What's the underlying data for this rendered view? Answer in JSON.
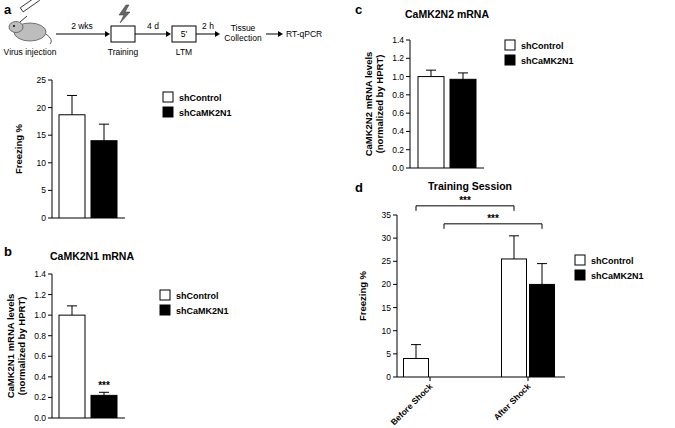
{
  "schematic": {
    "injection": "Virus injection",
    "training": "Training",
    "test_box": "5'",
    "test": "LTM",
    "collection": "Tissue Collection",
    "assay": "RT-qPCR",
    "intervals": [
      "2 wks",
      "4 d",
      "2 h"
    ]
  },
  "chart_data": [
    {
      "panel": "a",
      "type": "bar",
      "ylabel": "Freezing %",
      "categories": [
        null
      ],
      "series": [
        {
          "name": "shControl",
          "color": "#ffffff",
          "values": [
            18.7
          ],
          "errors": [
            3.5
          ]
        },
        {
          "name": "shCaMK2N1",
          "color": "#000000",
          "values": [
            14
          ],
          "errors": [
            3
          ]
        }
      ],
      "ylim": [
        0,
        25
      ],
      "yticks": [
        0,
        5,
        10,
        15,
        20,
        25
      ],
      "tick_labels": "y",
      "legend": "right"
    },
    {
      "panel": "b",
      "type": "bar",
      "title": "CaMK2N1 mRNA",
      "ylabel": "CaMK2N1 mRNA levels\n(normalized by HPRT)",
      "categories": [
        null
      ],
      "series": [
        {
          "name": "shControl",
          "color": "#ffffff",
          "values": [
            1.0
          ],
          "errors": [
            0.09
          ]
        },
        {
          "name": "shCaMK2N1",
          "color": "#000000",
          "values": [
            0.22
          ],
          "errors": [
            0.03
          ]
        }
      ],
      "ylim": [
        0,
        1.4
      ],
      "yticks": [
        {
          "value": 0,
          "label": "0.0"
        },
        0.2,
        0.4,
        0.6,
        0.8,
        {
          "value": 1,
          "label": "1.0"
        },
        1.2,
        1.4
      ],
      "tick_labels": "y",
      "legend": "right",
      "annotations": [
        {
          "text": "***",
          "series": 1,
          "category": 0
        }
      ]
    },
    {
      "panel": "c",
      "type": "bar",
      "title": "CaMK2N2 mRNA",
      "ylabel": "CaMK2N2 mRNA levels\n(normalized by HPRT)",
      "categories": [
        null
      ],
      "series": [
        {
          "name": "shControl",
          "color": "#ffffff",
          "values": [
            1.0
          ],
          "errors": [
            0.07
          ]
        },
        {
          "name": "shCaMK2N1",
          "color": "#000000",
          "values": [
            0.97
          ],
          "errors": [
            0.07
          ]
        }
      ],
      "ylim": [
        0,
        1.4
      ],
      "yticks": [
        {
          "value": 0,
          "label": "0.0"
        },
        0.2,
        0.4,
        0.6,
        0.8,
        {
          "value": 1,
          "label": "1.0"
        },
        1.2,
        1.4
      ],
      "tick_labels": "y",
      "legend": "right"
    },
    {
      "panel": "d",
      "type": "bar",
      "title": "Training Session",
      "ylabel": "Freezing %",
      "categories": [
        "Before Shock",
        "After Shock"
      ],
      "series": [
        {
          "name": "shControl",
          "color": "#ffffff",
          "values": [
            4,
            25.5
          ],
          "errors": [
            3,
            5
          ]
        },
        {
          "name": "shCaMK2N1",
          "color": "#000000",
          "values": [
            0,
            20
          ],
          "errors": [
            0,
            4.5
          ]
        }
      ],
      "ylim": [
        0,
        35
      ],
      "yticks": [
        0,
        5,
        10,
        15,
        20,
        25,
        30,
        35
      ],
      "legend": "right",
      "annotations": [
        {
          "text": "***",
          "series": 0,
          "categories": [
            0,
            1
          ]
        },
        {
          "text": "***",
          "series": 1,
          "categories": [
            0,
            1
          ]
        }
      ]
    }
  ]
}
